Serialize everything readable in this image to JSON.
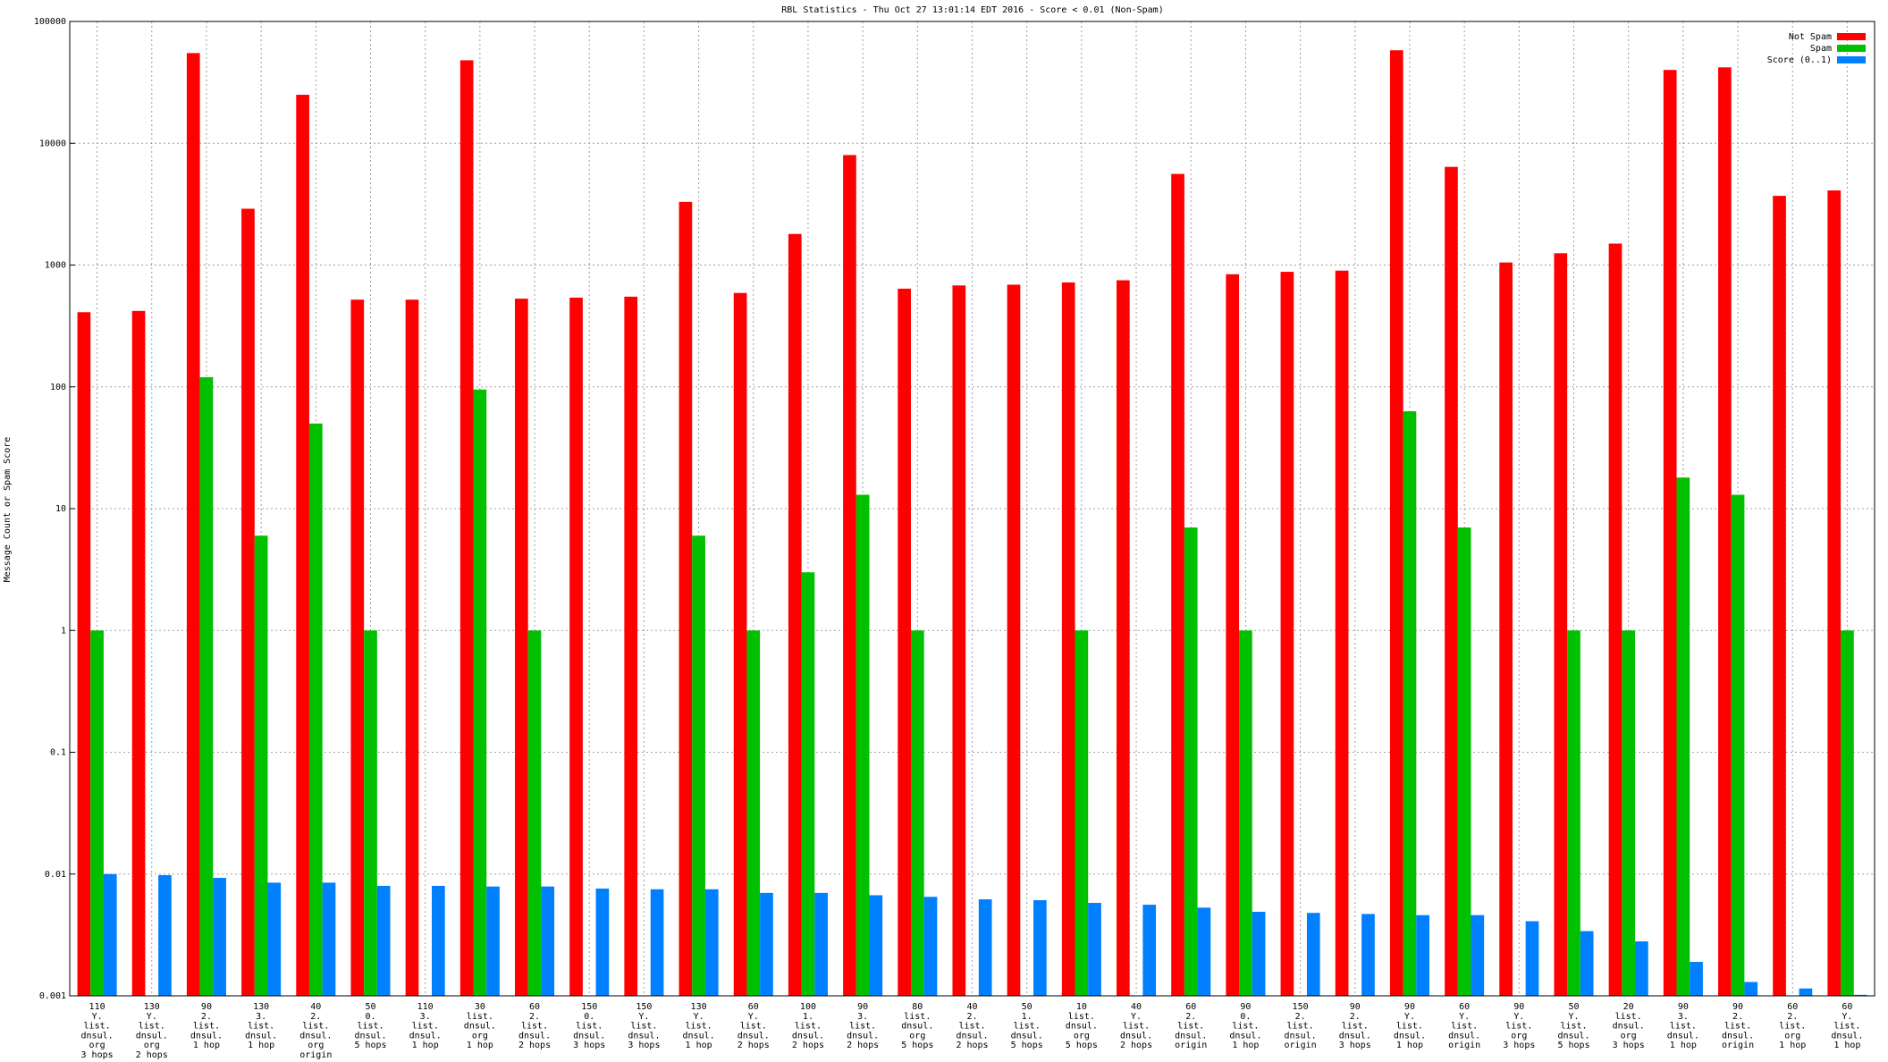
{
  "chart_data": {
    "type": "bar",
    "title": "RBL Statistics - Thu Oct 27 13:01:14 EDT 2016 - Score < 0.01 (Non-Spam)",
    "y_label": "Message Count or Spam Score",
    "log_scale": true,
    "grid": true,
    "legend": "top-right",
    "ylim": [
      0.001,
      100000
    ],
    "yticks": [
      0.001,
      0.01,
      0.1,
      1,
      10,
      100,
      1000,
      10000,
      100000
    ],
    "categories": [
      [
        "110",
        "Y.",
        "list.",
        "dnsul.",
        "org",
        "3 hops"
      ],
      [
        "130",
        "Y.",
        "list.",
        "dnsul.",
        "org",
        "2 hops"
      ],
      [
        "90",
        "2.",
        "list.",
        "dnsul.",
        "1 hop"
      ],
      [
        "130",
        "3.",
        "list.",
        "dnsul.",
        "1 hop"
      ],
      [
        "40",
        "2.",
        "list.",
        "dnsul.",
        "org",
        "origin"
      ],
      [
        "50",
        "0.",
        "list.",
        "dnsul.",
        "5 hops"
      ],
      [
        "110",
        "3.",
        "list.",
        "dnsul.",
        "1 hop"
      ],
      [
        "30",
        "list.",
        "dnsul.",
        "org",
        "1 hop"
      ],
      [
        "60",
        "2.",
        "list.",
        "dnsul.",
        "2 hops"
      ],
      [
        "150",
        "0.",
        "list.",
        "dnsul.",
        "3 hops"
      ],
      [
        "150",
        "Y.",
        "list.",
        "dnsul.",
        "3 hops"
      ],
      [
        "130",
        "Y.",
        "list.",
        "dnsul.",
        "1 hop"
      ],
      [
        "60",
        "Y.",
        "list.",
        "dnsul.",
        "2 hops"
      ],
      [
        "100",
        "1.",
        "list.",
        "dnsul.",
        "2 hops"
      ],
      [
        "90",
        "3.",
        "list.",
        "dnsul.",
        "2 hops"
      ],
      [
        "80",
        "list.",
        "dnsul.",
        "org",
        "5 hops"
      ],
      [
        "40",
        "2.",
        "list.",
        "dnsul.",
        "2 hops"
      ],
      [
        "50",
        "1.",
        "list.",
        "dnsul.",
        "5 hops"
      ],
      [
        "10",
        "list.",
        "dnsul.",
        "org",
        "5 hops"
      ],
      [
        "40",
        "Y.",
        "list.",
        "dnsul.",
        "2 hops"
      ],
      [
        "60",
        "2.",
        "list.",
        "dnsul.",
        "origin"
      ],
      [
        "90",
        "0.",
        "list.",
        "dnsul.",
        "1 hop"
      ],
      [
        "150",
        "2.",
        "list.",
        "dnsul.",
        "origin"
      ],
      [
        "90",
        "2.",
        "list.",
        "dnsul.",
        "3 hops"
      ],
      [
        "90",
        "Y.",
        "list.",
        "dnsul.",
        "1 hop"
      ],
      [
        "60",
        "Y.",
        "list.",
        "dnsul.",
        "origin"
      ],
      [
        "90",
        "Y.",
        "list.",
        "org",
        "3 hops"
      ],
      [
        "50",
        "Y.",
        "list.",
        "dnsul.",
        "5 hops"
      ],
      [
        "20",
        "list.",
        "dnsul.",
        "org",
        "3 hops"
      ],
      [
        "90",
        "3.",
        "list.",
        "dnsul.",
        "1 hop"
      ],
      [
        "90",
        "2.",
        "list.",
        "dnsul.",
        "origin"
      ],
      [
        "60",
        "2.",
        "list.",
        "org",
        "1 hop"
      ],
      [
        "60",
        "Y.",
        "list.",
        "dnsul.",
        "1 hop"
      ]
    ],
    "series": [
      {
        "name": "Not Spam",
        "color": "#ff0000",
        "values": [
          410,
          420,
          55000,
          2900,
          25000,
          520,
          520,
          48000,
          530,
          540,
          550,
          3300,
          590,
          1800,
          8000,
          640,
          680,
          690,
          720,
          750,
          5600,
          840,
          880,
          900,
          58000,
          6400,
          1050,
          1250,
          1500,
          40000,
          42000,
          3700,
          4100
        ]
      },
      {
        "name": "Spam",
        "color": "#00c000",
        "values": [
          1,
          null,
          120,
          6,
          50,
          1,
          null,
          95,
          1,
          null,
          null,
          6,
          1,
          3,
          13,
          1,
          null,
          null,
          1,
          null,
          7,
          1,
          null,
          null,
          63,
          7,
          null,
          1,
          1,
          18,
          13,
          null,
          1
        ]
      },
      {
        "name": "Score (0..1)",
        "color": "#0080ff",
        "values": [
          0.01,
          0.0098,
          0.0093,
          0.0085,
          0.0085,
          0.008,
          0.008,
          0.0079,
          0.0079,
          0.0076,
          0.0075,
          0.0075,
          0.007,
          0.007,
          0.0067,
          0.0065,
          0.0062,
          0.0061,
          0.0058,
          0.0056,
          0.0053,
          0.0049,
          0.0048,
          0.0047,
          0.0046,
          0.0046,
          0.0041,
          0.0034,
          0.0028,
          0.0019,
          0.0013,
          0.00115,
          0.00102
        ]
      }
    ]
  }
}
